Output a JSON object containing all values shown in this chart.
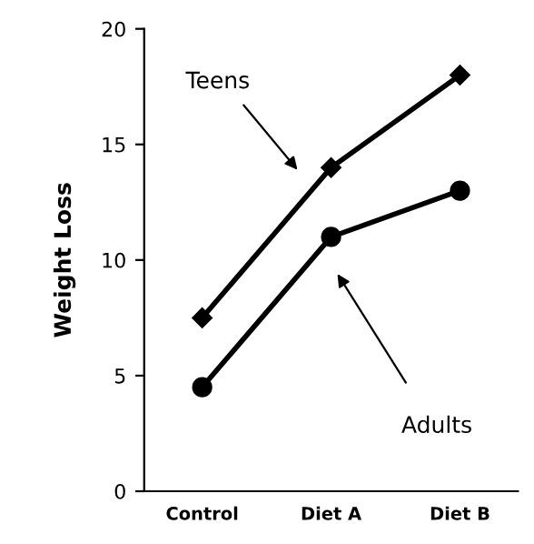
{
  "chart_data": {
    "type": "line",
    "ylabel": "Weight Loss",
    "categories": [
      "Control",
      "Diet A",
      "Diet B"
    ],
    "series": [
      {
        "color": "#000000",
        "values": [
          7.5,
          14,
          18
        ],
        "marker": "diamond"
      },
      {
        "color": "#000000",
        "values": [
          4.5,
          11,
          13
        ],
        "marker": "circle"
      }
    ],
    "ylim": [
      0,
      20
    ],
    "yticks": [
      0,
      5,
      10,
      15,
      20
    ],
    "grid": false,
    "legend": false,
    "annotations": [
      "Teens",
      "Adults"
    ]
  }
}
